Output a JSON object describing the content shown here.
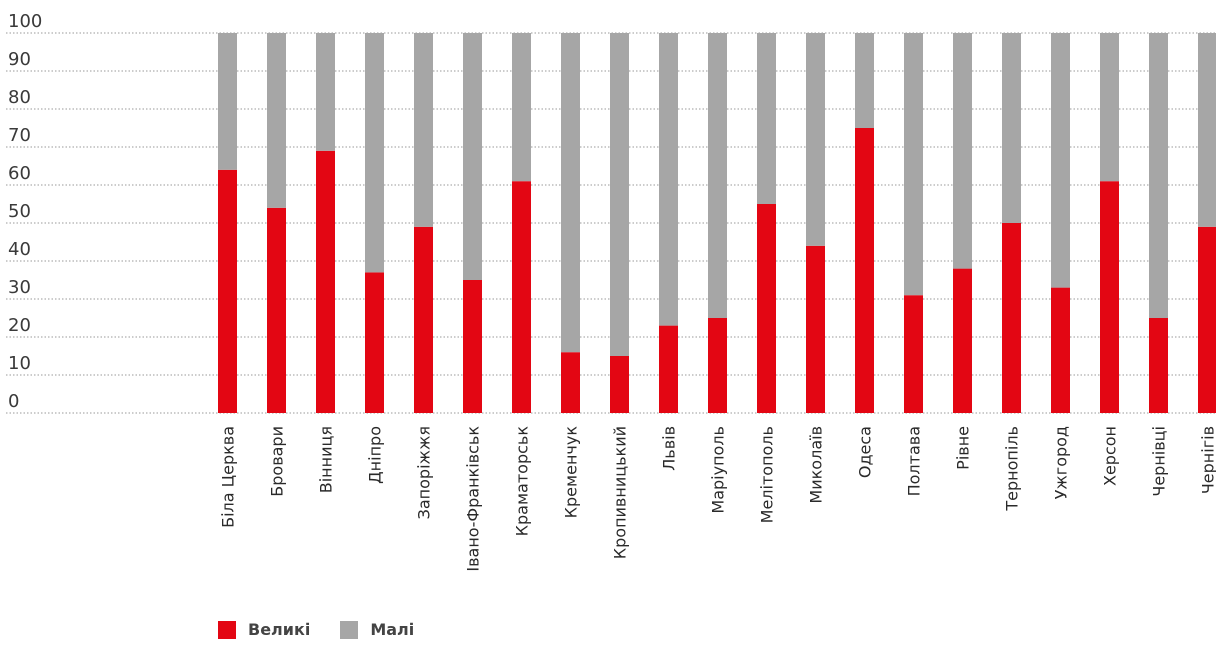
{
  "chart_data": {
    "type": "bar",
    "stacked": true,
    "ylim": [
      0,
      100
    ],
    "yticks": [
      0,
      10,
      20,
      30,
      40,
      50,
      60,
      70,
      80,
      90,
      100
    ],
    "grid": true,
    "legend_position": "bottom-left",
    "categories": [
      "Біла Церква",
      "Бровари",
      "Вінниця",
      "Дніпро",
      "Запоріжжя",
      "Івано-Франківськ",
      "Краматорськ",
      "Кременчук",
      "Кропивницький",
      "Львів",
      "Маріуполь",
      "Мелітополь",
      "Миколаїв",
      "Одеса",
      "Полтава",
      "Рівне",
      "Тернопіль",
      "Ужгород",
      "Херсон",
      "Чернівці",
      "Чернігів"
    ],
    "series": [
      {
        "name": "Великі",
        "color": "#e30613",
        "values": [
          64,
          54,
          69,
          37,
          49,
          35,
          61,
          16,
          15,
          23,
          25,
          55,
          44,
          75,
          31,
          38,
          50,
          33,
          61,
          25,
          49
        ]
      },
      {
        "name": "Малі",
        "color": "#a6a6a6",
        "values": [
          36,
          46,
          31,
          63,
          51,
          65,
          39,
          84,
          85,
          77,
          75,
          45,
          56,
          25,
          69,
          62,
          50,
          67,
          39,
          75,
          51
        ]
      }
    ]
  }
}
